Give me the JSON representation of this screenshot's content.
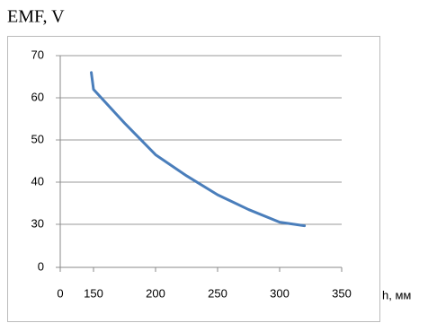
{
  "chart_data": {
    "type": "line",
    "title": "EMF, V",
    "x_label": "h, мм",
    "x": [
      140,
      150,
      175,
      200,
      225,
      250,
      275,
      300,
      320
    ],
    "series": [
      {
        "name": "EMF",
        "color": "#4a7ebb",
        "values": [
          66,
          62,
          54,
          46.5,
          41.5,
          37,
          33.5,
          30.5,
          29
        ]
      }
    ],
    "xlim": [
      0,
      350
    ],
    "xticks": [
      0,
      150,
      200,
      250,
      300,
      350
    ],
    "x_axis_break": true,
    "ylim": [
      0,
      70
    ],
    "yticks": [
      0,
      30,
      40,
      50,
      60,
      70
    ],
    "y_axis_break": true,
    "grid": true
  }
}
